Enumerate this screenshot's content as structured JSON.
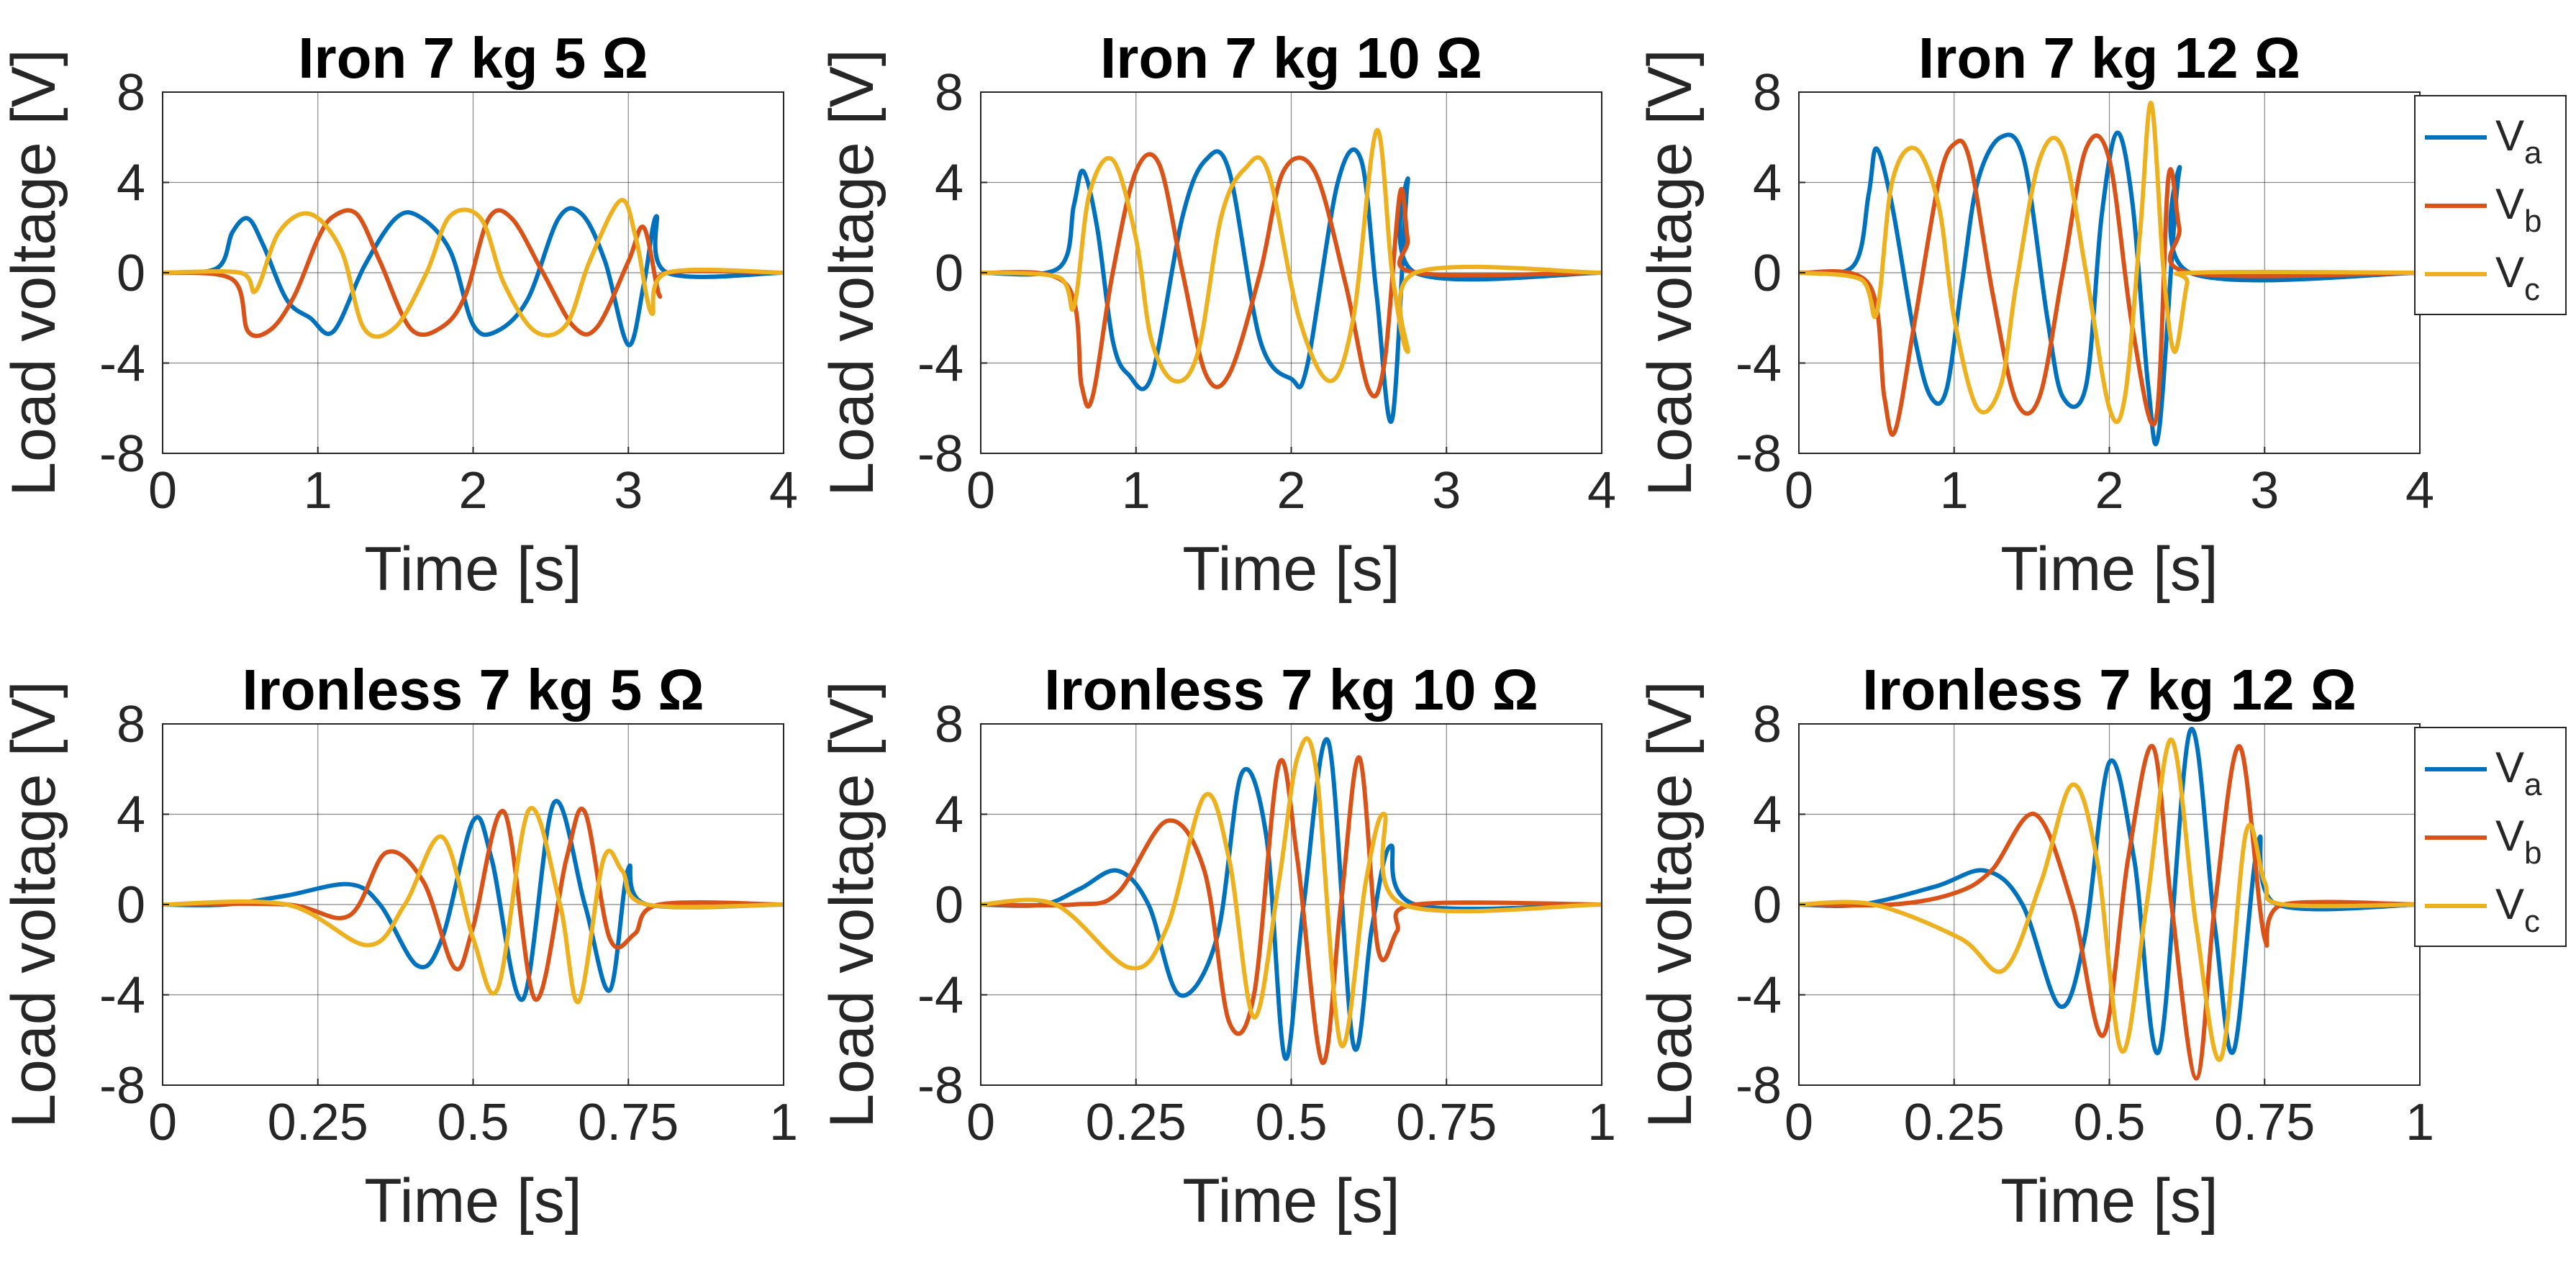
{
  "chart_data": [
    {
      "type": "line",
      "title": "Iron 7 kg 5 Ω",
      "xlabel": "Time [s]",
      "ylabel": "Load voltage [V]",
      "xlim": [
        0,
        4
      ],
      "ylim": [
        -8,
        8
      ],
      "xticks": [
        0,
        1,
        2,
        3,
        4
      ],
      "xtick_labels": [
        "0",
        "1",
        "2",
        "3",
        "4"
      ],
      "yticks": [
        -8,
        -4,
        0,
        4,
        8
      ],
      "ytick_labels": [
        "-8",
        "-4",
        "0",
        "4",
        "8"
      ],
      "grid": true,
      "legend": null,
      "series": [
        {
          "name": "V_a",
          "color": "#0072BD",
          "x": [
            0,
            0.35,
            0.45,
            0.55,
            0.65,
            0.8,
            0.95,
            1.1,
            1.3,
            1.5,
            1.65,
            1.85,
            2.0,
            2.15,
            2.35,
            2.55,
            2.7,
            2.85,
            3.0,
            3.1,
            3.18,
            3.25,
            4
          ],
          "y": [
            0,
            0.2,
            1.8,
            2.4,
            1.2,
            -1.2,
            -2.0,
            -2.6,
            0.3,
            2.4,
            2.5,
            1.0,
            -2.3,
            -2.6,
            -1.2,
            2.4,
            2.6,
            0.5,
            -3.2,
            -0.5,
            2.5,
            0,
            0
          ]
        },
        {
          "name": "V_b",
          "color": "#D95319",
          "x": [
            0,
            0.45,
            0.55,
            0.7,
            0.85,
            1.0,
            1.1,
            1.25,
            1.4,
            1.6,
            1.8,
            1.95,
            2.1,
            2.25,
            2.45,
            2.65,
            2.8,
            3.0,
            3.1,
            3.2,
            3.25,
            4
          ],
          "y": [
            0,
            -0.3,
            -2.6,
            -2.5,
            -1.0,
            1.5,
            2.5,
            2.6,
            0.5,
            -2.5,
            -2.4,
            -1.0,
            2.4,
            2.4,
            0,
            -2.4,
            -2.4,
            0.5,
            2.0,
            -1.0,
            0,
            0
          ]
        },
        {
          "name": "V_c",
          "color": "#EDB120",
          "x": [
            0,
            0.5,
            0.6,
            0.75,
            0.95,
            1.15,
            1.3,
            1.5,
            1.7,
            1.85,
            2.05,
            2.2,
            2.4,
            2.6,
            2.75,
            2.95,
            3.05,
            3.15,
            3.25,
            4
          ],
          "y": [
            0,
            0,
            -0.8,
            1.8,
            2.6,
            1.0,
            -2.5,
            -2.4,
            0,
            2.5,
            2.4,
            -0.5,
            -2.6,
            -2.3,
            0.5,
            3.2,
            1.5,
            -1.8,
            0,
            0
          ]
        }
      ]
    },
    {
      "type": "line",
      "title": "Iron 7 kg 10 Ω",
      "xlabel": "Time [s]",
      "ylabel": "Load voltage [V]",
      "xlim": [
        0,
        4
      ],
      "ylim": [
        -8,
        8
      ],
      "xticks": [
        0,
        1,
        2,
        3,
        4
      ],
      "xtick_labels": [
        "0",
        "1",
        "2",
        "3",
        "4"
      ],
      "yticks": [
        -8,
        -4,
        0,
        4,
        8
      ],
      "ytick_labels": [
        "-8",
        "-4",
        "0",
        "4",
        "8"
      ],
      "grid": true,
      "legend": null,
      "series": [
        {
          "name": "V_a",
          "color": "#0072BD",
          "x": [
            0,
            0.5,
            0.6,
            0.66,
            0.75,
            0.85,
            0.95,
            1.1,
            1.3,
            1.45,
            1.6,
            1.8,
            2.0,
            2.1,
            2.3,
            2.45,
            2.55,
            2.65,
            2.75,
            2.8,
            4
          ],
          "y": [
            0,
            0.2,
            3.0,
            4.5,
            2.0,
            -3.0,
            -4.5,
            -4.6,
            2.5,
            5.0,
            4.5,
            -3.0,
            -4.7,
            -4.2,
            4.0,
            5.0,
            -1.0,
            -6.5,
            4.0,
            0,
            0
          ]
        },
        {
          "name": "V_b",
          "color": "#D95319",
          "x": [
            0,
            0.55,
            0.65,
            0.72,
            0.85,
            1.0,
            1.15,
            1.3,
            1.45,
            1.6,
            1.8,
            1.95,
            2.15,
            2.35,
            2.5,
            2.6,
            2.7,
            2.75,
            2.8,
            4
          ],
          "y": [
            0,
            -0.5,
            -5.0,
            -5.5,
            0,
            4.5,
            4.8,
            0,
            -4.5,
            -4.5,
            0,
            4.5,
            4.5,
            -0.5,
            -5.2,
            -4.0,
            3.5,
            1.5,
            0,
            0
          ]
        },
        {
          "name": "V_c",
          "color": "#EDB120",
          "x": [
            0,
            0.5,
            0.6,
            0.7,
            0.85,
            1.0,
            1.1,
            1.25,
            1.4,
            1.55,
            1.7,
            1.85,
            2.05,
            2.25,
            2.4,
            2.55,
            2.65,
            2.75,
            2.8,
            4
          ],
          "y": [
            0,
            -0.2,
            -1.5,
            3.5,
            5.0,
            1.5,
            -3.0,
            -4.8,
            -3.5,
            2.5,
            4.6,
            4.5,
            -2.0,
            -4.8,
            -2.0,
            6.3,
            0,
            -3.5,
            0,
            0
          ]
        }
      ]
    },
    {
      "type": "line",
      "title": "Iron 7 kg 12 Ω",
      "xlabel": "Time [s]",
      "ylabel": "Load voltage [V]",
      "xlim": [
        0,
        4
      ],
      "ylim": [
        -8,
        8
      ],
      "xticks": [
        0,
        1,
        2,
        3,
        4
      ],
      "xtick_labels": [
        "0",
        "1",
        "2",
        "3",
        "4"
      ],
      "yticks": [
        -8,
        -4,
        0,
        4,
        8
      ],
      "ytick_labels": [
        "-8",
        "-4",
        "0",
        "4",
        "8"
      ],
      "grid": true,
      "legend": {
        "entries": [
          "V",
          "V",
          "V"
        ],
        "subscripts": [
          "a",
          "b",
          "c"
        ],
        "placement": "outside-right"
      },
      "series": [
        {
          "name": "V_a",
          "color": "#0072BD",
          "x": [
            0,
            0.35,
            0.45,
            0.5,
            0.6,
            0.75,
            0.85,
            0.95,
            1.05,
            1.15,
            1.3,
            1.45,
            1.6,
            1.7,
            1.85,
            1.95,
            2.05,
            2.15,
            2.25,
            2.32,
            2.45,
            2.52,
            4
          ],
          "y": [
            0,
            0.3,
            3.5,
            5.5,
            3.0,
            -3.0,
            -5.5,
            -5.2,
            -0.5,
            4.0,
            6.0,
            5.0,
            -2.0,
            -5.5,
            -5.0,
            2.5,
            6.2,
            3.0,
            -5.0,
            -7.0,
            4.5,
            0,
            0
          ]
        },
        {
          "name": "V_b",
          "color": "#D95319",
          "x": [
            0,
            0.45,
            0.55,
            0.62,
            0.75,
            0.9,
            1.0,
            1.1,
            1.25,
            1.4,
            1.55,
            1.7,
            1.85,
            2.0,
            2.15,
            2.3,
            2.38,
            2.45,
            2.52,
            4
          ],
          "y": [
            0,
            -0.5,
            -5.5,
            -7.0,
            -2.0,
            4.0,
            5.7,
            5.0,
            -1.0,
            -5.7,
            -5.5,
            0,
            5.5,
            5.0,
            -2.5,
            -6.5,
            4.2,
            2.0,
            0,
            0
          ]
        },
        {
          "name": "V_c",
          "color": "#EDB120",
          "x": [
            0,
            0.4,
            0.5,
            0.6,
            0.75,
            0.9,
            1.0,
            1.15,
            1.3,
            1.4,
            1.55,
            1.7,
            1.85,
            2.0,
            2.1,
            2.2,
            2.27,
            2.35,
            2.42,
            2.5,
            2.55,
            4
          ],
          "y": [
            0,
            -0.3,
            -1.8,
            4.0,
            5.5,
            3.0,
            -2.0,
            -6.0,
            -5.0,
            -0.5,
            5.0,
            5.5,
            0,
            -6.0,
            -5.5,
            2.0,
            7.5,
            0,
            -3.5,
            -0.5,
            0,
            0
          ]
        }
      ]
    },
    {
      "type": "line",
      "title": "Ironless 7 kg 5 Ω",
      "xlabel": "Time [s]",
      "ylabel": "Load voltage [V]",
      "xlim": [
        0,
        1
      ],
      "ylim": [
        -8,
        8
      ],
      "xticks": [
        0,
        0.25,
        0.5,
        0.75,
        1
      ],
      "xtick_labels": [
        "0",
        "0.25",
        "0.5",
        "0.75",
        "1"
      ],
      "yticks": [
        -8,
        -4,
        0,
        4,
        8
      ],
      "ytick_labels": [
        "-8",
        "-4",
        "0",
        "4",
        "8"
      ],
      "grid": true,
      "legend": null,
      "series": [
        {
          "name": "V_a",
          "color": "#0072BD",
          "x": [
            0,
            0.1,
            0.2,
            0.3,
            0.35,
            0.41,
            0.45,
            0.5,
            0.53,
            0.58,
            0.63,
            0.68,
            0.72,
            0.75,
            0.78,
            1
          ],
          "y": [
            0,
            0,
            0.4,
            0.9,
            0,
            -2.7,
            -1.5,
            3.7,
            2.0,
            -4.2,
            4.5,
            0,
            -3.8,
            1.6,
            0,
            0
          ]
        },
        {
          "name": "V_b",
          "color": "#D95319",
          "x": [
            0,
            0.2,
            0.3,
            0.36,
            0.42,
            0.47,
            0.5,
            0.55,
            0.6,
            0.65,
            0.68,
            0.72,
            0.76,
            0.8,
            1
          ],
          "y": [
            0,
            0,
            -0.5,
            2.3,
            1.0,
            -2.8,
            -1.0,
            4.1,
            -4.2,
            2.0,
            4.1,
            -1.5,
            -1.3,
            0,
            0
          ]
        },
        {
          "name": "V_c",
          "color": "#EDB120",
          "x": [
            0,
            0.2,
            0.33,
            0.39,
            0.45,
            0.5,
            0.54,
            0.59,
            0.64,
            0.67,
            0.71,
            0.74,
            0.78,
            1
          ],
          "y": [
            0,
            0,
            -1.8,
            0,
            3.0,
            -1.5,
            -3.7,
            4.2,
            0,
            -4.3,
            2.0,
            1.5,
            0,
            0
          ]
        }
      ]
    },
    {
      "type": "line",
      "title": "Ironless 7 kg 10 Ω",
      "xlabel": "Time [s]",
      "ylabel": "Load voltage [V]",
      "xlim": [
        0,
        1
      ],
      "ylim": [
        -8,
        8
      ],
      "xticks": [
        0,
        0.25,
        0.5,
        0.75,
        1
      ],
      "xtick_labels": [
        "0",
        "0.25",
        "0.5",
        "0.75",
        "1"
      ],
      "yticks": [
        -8,
        -4,
        0,
        4,
        8
      ],
      "ytick_labels": [
        "-8",
        "-4",
        "0",
        "4",
        "8"
      ],
      "grid": true,
      "legend": null,
      "series": [
        {
          "name": "V_a",
          "color": "#0072BD",
          "x": [
            0,
            0.1,
            0.16,
            0.22,
            0.27,
            0.32,
            0.38,
            0.42,
            0.46,
            0.49,
            0.52,
            0.56,
            0.6,
            0.63,
            0.66,
            0.7,
            1
          ],
          "y": [
            0,
            0,
            0.7,
            1.5,
            0,
            -4.0,
            -1.5,
            5.8,
            3.0,
            -6.8,
            0,
            7.2,
            -6.2,
            -1.0,
            2.6,
            0,
            0
          ]
        },
        {
          "name": "V_b",
          "color": "#D95319",
          "x": [
            0,
            0.15,
            0.22,
            0.3,
            0.36,
            0.4,
            0.44,
            0.48,
            0.51,
            0.55,
            0.58,
            0.61,
            0.64,
            0.67,
            0.7,
            1
          ],
          "y": [
            0,
            0,
            0.5,
            3.7,
            1.5,
            -5.2,
            -4.0,
            6.2,
            2.0,
            -7.0,
            0,
            6.5,
            -2.0,
            -1.2,
            0,
            0
          ]
        },
        {
          "name": "V_c",
          "color": "#EDB120",
          "x": [
            0,
            0.12,
            0.24,
            0.3,
            0.36,
            0.4,
            0.44,
            0.48,
            0.51,
            0.54,
            0.58,
            0.62,
            0.65,
            0.68,
            1
          ],
          "y": [
            0,
            0,
            -2.8,
            -1.0,
            4.8,
            2.0,
            -5.0,
            1.0,
            6.5,
            6.0,
            -6.2,
            1.0,
            4.0,
            0,
            0
          ]
        }
      ]
    },
    {
      "type": "line",
      "title": "Ironless 7 kg 12 Ω",
      "xlabel": "Time [s]",
      "ylabel": "Load voltage [V]",
      "xlim": [
        0,
        1
      ],
      "ylim": [
        -8,
        8
      ],
      "xticks": [
        0,
        0.25,
        0.5,
        0.75,
        1
      ],
      "xtick_labels": [
        "0",
        "0.25",
        "0.5",
        "0.75",
        "1"
      ],
      "yticks": [
        -8,
        -4,
        0,
        4,
        8
      ],
      "ytick_labels": [
        "-8",
        "-4",
        "0",
        "4",
        "8"
      ],
      "grid": true,
      "legend": {
        "entries": [
          "V",
          "V",
          "V"
        ],
        "subscripts": [
          "a",
          "b",
          "c"
        ],
        "placement": "outside-right"
      },
      "series": [
        {
          "name": "V_a",
          "color": "#0072BD",
          "x": [
            0,
            0.1,
            0.22,
            0.3,
            0.36,
            0.42,
            0.46,
            0.5,
            0.54,
            0.58,
            0.63,
            0.67,
            0.7,
            0.74,
            0.77,
            1
          ],
          "y": [
            0,
            0,
            0.8,
            1.5,
            0,
            -4.5,
            -1.5,
            6.3,
            2.0,
            -6.5,
            7.7,
            -1.0,
            -6.5,
            2.8,
            0,
            0
          ]
        },
        {
          "name": "V_b",
          "color": "#D95319",
          "x": [
            0,
            0.15,
            0.25,
            0.31,
            0.38,
            0.44,
            0.49,
            0.53,
            0.57,
            0.6,
            0.64,
            0.67,
            0.71,
            0.75,
            0.78,
            1
          ],
          "y": [
            0,
            0,
            0.5,
            1.5,
            4.0,
            0,
            -5.8,
            2.0,
            7.0,
            0,
            -7.7,
            0,
            7.0,
            -1.5,
            0,
            0
          ]
        },
        {
          "name": "V_c",
          "color": "#EDB120",
          "x": [
            0,
            0.12,
            0.26,
            0.33,
            0.39,
            0.44,
            0.48,
            0.52,
            0.56,
            0.6,
            0.64,
            0.68,
            0.72,
            0.75,
            0.78,
            1
          ],
          "y": [
            0,
            0,
            -1.5,
            -2.9,
            1.0,
            5.3,
            2.0,
            -6.5,
            0,
            7.3,
            -1.0,
            -6.8,
            3.2,
            1.0,
            0,
            0
          ]
        }
      ]
    }
  ]
}
